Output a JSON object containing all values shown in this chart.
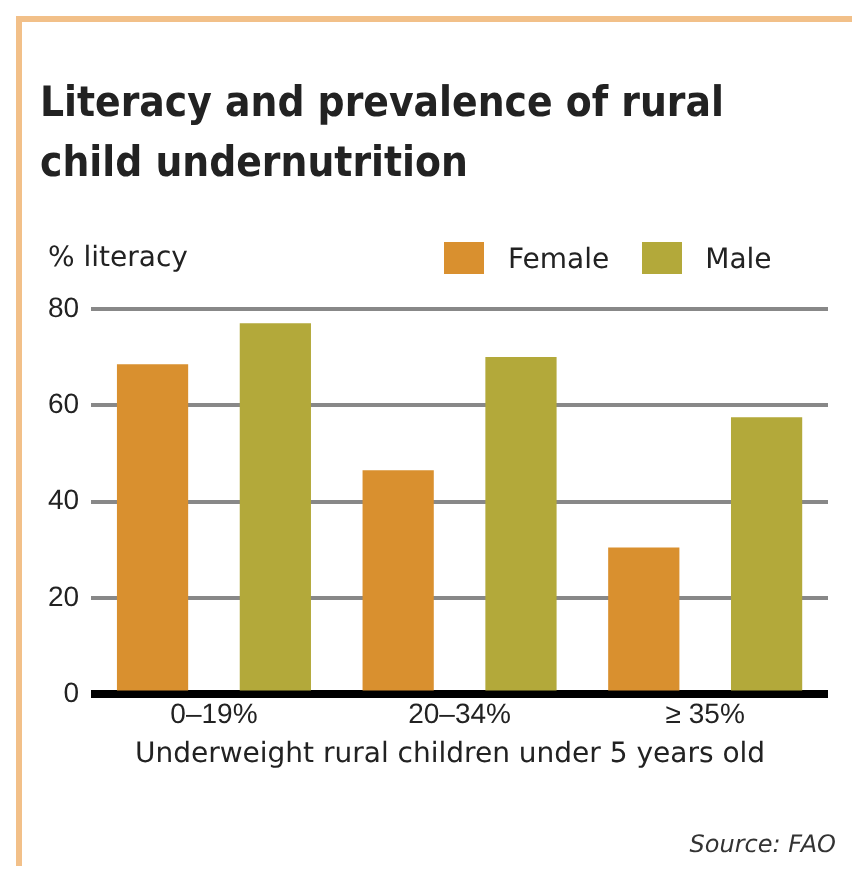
{
  "chart_data": {
    "type": "bar",
    "title": "Literacy and prevalence of rural child undernutrition",
    "ylabel": "% literacy",
    "xlabel": "Underweight rural children under 5 years old",
    "categories": [
      "0–19%",
      "20–34%",
      "≥ 35%"
    ],
    "series": [
      {
        "name": "Female",
        "color": "#d9902f",
        "values": [
          68.5,
          46.5,
          30.5
        ]
      },
      {
        "name": "Male",
        "color": "#b3a93a",
        "values": [
          77,
          70,
          57.5
        ]
      }
    ],
    "ylim": [
      0,
      80
    ],
    "yticks": [
      0,
      20,
      40,
      60,
      80
    ],
    "grid": "y",
    "legend": "top right",
    "annotations": [
      "Source: FAO"
    ]
  }
}
